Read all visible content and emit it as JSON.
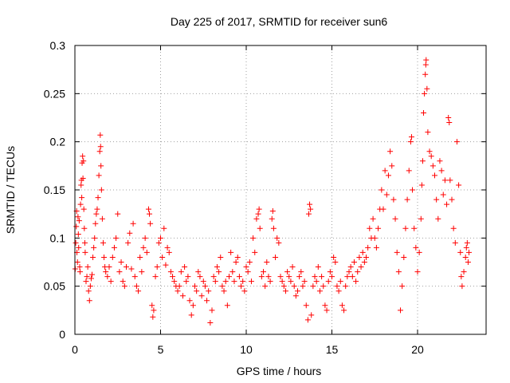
{
  "chart_data": {
    "type": "scatter",
    "title": "Day 225 of 2017, SRMTID for receiver sun6",
    "xlabel": "GPS time / hours",
    "ylabel": "SRMTID / TECUs",
    "xlim": [
      0,
      24
    ],
    "ylim": [
      0,
      0.3
    ],
    "xticks": [
      0,
      5,
      10,
      15,
      20
    ],
    "xtick_labels": [
      "0",
      "5",
      "10",
      "15",
      "20"
    ],
    "yticks": [
      0,
      0.05,
      0.1,
      0.15,
      0.2,
      0.25,
      0.3
    ],
    "ytick_labels": [
      "0",
      "0.05",
      "0.1",
      "0.15",
      "0.2",
      "0.25",
      "0.3"
    ],
    "grid": true,
    "marker": "plus",
    "series_color": "#ff0000",
    "series": [
      {
        "name": "SRMTID",
        "points": [
          [
            0.02,
            0.068
          ],
          [
            0.05,
            0.095
          ],
          [
            0.08,
            0.112
          ],
          [
            0.1,
            0.128
          ],
          [
            0.12,
            0.085
          ],
          [
            0.15,
            0.075
          ],
          [
            0.18,
            0.122
          ],
          [
            0.2,
            0.104
          ],
          [
            0.22,
            0.09
          ],
          [
            0.25,
            0.118
          ],
          [
            0.28,
            0.07
          ],
          [
            0.3,
            0.065
          ],
          [
            0.33,
            0.135
          ],
          [
            0.36,
            0.155
          ],
          [
            0.38,
            0.16
          ],
          [
            0.4,
            0.142
          ],
          [
            0.42,
            0.178
          ],
          [
            0.45,
            0.185
          ],
          [
            0.47,
            0.162
          ],
          [
            0.5,
            0.18
          ],
          [
            0.52,
            0.13
          ],
          [
            0.55,
            0.11
          ],
          [
            0.58,
            0.095
          ],
          [
            0.6,
            0.085
          ],
          [
            0.65,
            0.055
          ],
          [
            0.7,
            0.06
          ],
          [
            0.75,
            0.07
          ],
          [
            0.8,
            0.045
          ],
          [
            0.85,
            0.035
          ],
          [
            0.9,
            0.05
          ],
          [
            0.95,
            0.058
          ],
          [
            1.0,
            0.062
          ],
          [
            1.05,
            0.08
          ],
          [
            1.1,
            0.09
          ],
          [
            1.15,
            0.1
          ],
          [
            1.2,
            0.115
          ],
          [
            1.25,
            0.125
          ],
          [
            1.3,
            0.13
          ],
          [
            1.35,
            0.142
          ],
          [
            1.4,
            0.165
          ],
          [
            1.45,
            0.19
          ],
          [
            1.48,
            0.207
          ],
          [
            1.5,
            0.195
          ],
          [
            1.52,
            0.175
          ],
          [
            1.55,
            0.15
          ],
          [
            1.6,
            0.12
          ],
          [
            1.65,
            0.095
          ],
          [
            1.7,
            0.08
          ],
          [
            1.75,
            0.07
          ],
          [
            1.8,
            0.065
          ],
          [
            1.9,
            0.06
          ],
          [
            2.0,
            0.07
          ],
          [
            2.1,
            0.055
          ],
          [
            2.2,
            0.08
          ],
          [
            2.3,
            0.09
          ],
          [
            2.4,
            0.1
          ],
          [
            2.5,
            0.125
          ],
          [
            2.6,
            0.065
          ],
          [
            2.7,
            0.075
          ],
          [
            2.8,
            0.055
          ],
          [
            2.9,
            0.05
          ],
          [
            3.0,
            0.07
          ],
          [
            3.1,
            0.095
          ],
          [
            3.2,
            0.105
          ],
          [
            3.3,
            0.068
          ],
          [
            3.4,
            0.115
          ],
          [
            3.5,
            0.06
          ],
          [
            3.6,
            0.05
          ],
          [
            3.7,
            0.045
          ],
          [
            3.8,
            0.08
          ],
          [
            3.9,
            0.065
          ],
          [
            4.0,
            0.09
          ],
          [
            4.1,
            0.1
          ],
          [
            4.2,
            0.085
          ],
          [
            4.3,
            0.13
          ],
          [
            4.35,
            0.125
          ],
          [
            4.4,
            0.115
          ],
          [
            4.5,
            0.03
          ],
          [
            4.55,
            0.018
          ],
          [
            4.6,
            0.025
          ],
          [
            4.7,
            0.06
          ],
          [
            4.8,
            0.07
          ],
          [
            4.9,
            0.095
          ],
          [
            5.0,
            0.1
          ],
          [
            5.1,
            0.08
          ],
          [
            5.2,
            0.11
          ],
          [
            5.3,
            0.072
          ],
          [
            5.4,
            0.09
          ],
          [
            5.5,
            0.085
          ],
          [
            5.6,
            0.065
          ],
          [
            5.7,
            0.06
          ],
          [
            5.8,
            0.055
          ],
          [
            5.9,
            0.05
          ],
          [
            6.0,
            0.045
          ],
          [
            6.1,
            0.05
          ],
          [
            6.2,
            0.065
          ],
          [
            6.3,
            0.04
          ],
          [
            6.4,
            0.07
          ],
          [
            6.5,
            0.055
          ],
          [
            6.6,
            0.06
          ],
          [
            6.7,
            0.035
          ],
          [
            6.8,
            0.02
          ],
          [
            6.9,
            0.03
          ],
          [
            7.0,
            0.05
          ],
          [
            7.1,
            0.045
          ],
          [
            7.2,
            0.065
          ],
          [
            7.3,
            0.06
          ],
          [
            7.4,
            0.04
          ],
          [
            7.5,
            0.055
          ],
          [
            7.6,
            0.05
          ],
          [
            7.7,
            0.035
          ],
          [
            7.8,
            0.045
          ],
          [
            7.9,
            0.012
          ],
          [
            8.0,
            0.025
          ],
          [
            8.1,
            0.06
          ],
          [
            8.2,
            0.055
          ],
          [
            8.3,
            0.07
          ],
          [
            8.4,
            0.065
          ],
          [
            8.5,
            0.08
          ],
          [
            8.6,
            0.05
          ],
          [
            8.7,
            0.045
          ],
          [
            8.8,
            0.055
          ],
          [
            8.9,
            0.03
          ],
          [
            9.0,
            0.06
          ],
          [
            9.1,
            0.085
          ],
          [
            9.2,
            0.065
          ],
          [
            9.3,
            0.055
          ],
          [
            9.4,
            0.075
          ],
          [
            9.5,
            0.08
          ],
          [
            9.6,
            0.06
          ],
          [
            9.7,
            0.05
          ],
          [
            9.8,
            0.055
          ],
          [
            9.9,
            0.045
          ],
          [
            10.0,
            0.07
          ],
          [
            10.1,
            0.065
          ],
          [
            10.2,
            0.075
          ],
          [
            10.3,
            0.055
          ],
          [
            10.4,
            0.1
          ],
          [
            10.5,
            0.085
          ],
          [
            10.6,
            0.12
          ],
          [
            10.7,
            0.125
          ],
          [
            10.75,
            0.13
          ],
          [
            10.8,
            0.11
          ],
          [
            10.9,
            0.06
          ],
          [
            11.0,
            0.065
          ],
          [
            11.1,
            0.05
          ],
          [
            11.2,
            0.075
          ],
          [
            11.3,
            0.06
          ],
          [
            11.4,
            0.055
          ],
          [
            11.5,
            0.12
          ],
          [
            11.55,
            0.128
          ],
          [
            11.6,
            0.11
          ],
          [
            11.7,
            0.08
          ],
          [
            11.8,
            0.1
          ],
          [
            11.9,
            0.095
          ],
          [
            12.0,
            0.06
          ],
          [
            12.1,
            0.055
          ],
          [
            12.2,
            0.05
          ],
          [
            12.3,
            0.045
          ],
          [
            12.4,
            0.065
          ],
          [
            12.5,
            0.06
          ],
          [
            12.6,
            0.055
          ],
          [
            12.7,
            0.07
          ],
          [
            12.8,
            0.05
          ],
          [
            12.9,
            0.04
          ],
          [
            13.0,
            0.045
          ],
          [
            13.1,
            0.06
          ],
          [
            13.2,
            0.065
          ],
          [
            13.3,
            0.05
          ],
          [
            13.4,
            0.055
          ],
          [
            13.5,
            0.03
          ],
          [
            13.6,
            0.015
          ],
          [
            13.65,
            0.125
          ],
          [
            13.7,
            0.135
          ],
          [
            13.75,
            0.13
          ],
          [
            13.8,
            0.02
          ],
          [
            13.9,
            0.05
          ],
          [
            14.0,
            0.06
          ],
          [
            14.1,
            0.055
          ],
          [
            14.2,
            0.07
          ],
          [
            14.3,
            0.045
          ],
          [
            14.4,
            0.06
          ],
          [
            14.5,
            0.05
          ],
          [
            14.6,
            0.03
          ],
          [
            14.7,
            0.025
          ],
          [
            14.8,
            0.055
          ],
          [
            14.9,
            0.065
          ],
          [
            15.0,
            0.06
          ],
          [
            15.1,
            0.08
          ],
          [
            15.2,
            0.075
          ],
          [
            15.3,
            0.05
          ],
          [
            15.4,
            0.045
          ],
          [
            15.5,
            0.055
          ],
          [
            15.6,
            0.03
          ],
          [
            15.7,
            0.025
          ],
          [
            15.8,
            0.05
          ],
          [
            15.9,
            0.06
          ],
          [
            16.0,
            0.065
          ],
          [
            16.1,
            0.07
          ],
          [
            16.2,
            0.06
          ],
          [
            16.3,
            0.075
          ],
          [
            16.4,
            0.055
          ],
          [
            16.5,
            0.065
          ],
          [
            16.6,
            0.08
          ],
          [
            16.7,
            0.07
          ],
          [
            16.8,
            0.085
          ],
          [
            16.9,
            0.075
          ],
          [
            17.0,
            0.08
          ],
          [
            17.1,
            0.09
          ],
          [
            17.2,
            0.11
          ],
          [
            17.3,
            0.1
          ],
          [
            17.4,
            0.12
          ],
          [
            17.5,
            0.1
          ],
          [
            17.6,
            0.09
          ],
          [
            17.7,
            0.11
          ],
          [
            17.8,
            0.13
          ],
          [
            17.9,
            0.15
          ],
          [
            18.0,
            0.13
          ],
          [
            18.1,
            0.17
          ],
          [
            18.2,
            0.145
          ],
          [
            18.3,
            0.165
          ],
          [
            18.4,
            0.19
          ],
          [
            18.5,
            0.175
          ],
          [
            18.6,
            0.14
          ],
          [
            18.7,
            0.12
          ],
          [
            18.8,
            0.085
          ],
          [
            18.9,
            0.065
          ],
          [
            19.0,
            0.025
          ],
          [
            19.1,
            0.05
          ],
          [
            19.2,
            0.08
          ],
          [
            19.3,
            0.11
          ],
          [
            19.4,
            0.14
          ],
          [
            19.5,
            0.17
          ],
          [
            19.6,
            0.2
          ],
          [
            19.65,
            0.205
          ],
          [
            19.7,
            0.15
          ],
          [
            19.8,
            0.11
          ],
          [
            19.9,
            0.09
          ],
          [
            20.0,
            0.065
          ],
          [
            20.1,
            0.085
          ],
          [
            20.2,
            0.12
          ],
          [
            20.25,
            0.155
          ],
          [
            20.3,
            0.18
          ],
          [
            20.35,
            0.23
          ],
          [
            20.4,
            0.25
          ],
          [
            20.45,
            0.27
          ],
          [
            20.48,
            0.28
          ],
          [
            20.5,
            0.285
          ],
          [
            20.55,
            0.255
          ],
          [
            20.6,
            0.21
          ],
          [
            20.7,
            0.19
          ],
          [
            20.8,
            0.185
          ],
          [
            20.9,
            0.175
          ],
          [
            21.0,
            0.165
          ],
          [
            21.1,
            0.14
          ],
          [
            21.2,
            0.12
          ],
          [
            21.3,
            0.18
          ],
          [
            21.4,
            0.17
          ],
          [
            21.5,
            0.145
          ],
          [
            21.6,
            0.16
          ],
          [
            21.7,
            0.135
          ],
          [
            21.8,
            0.225
          ],
          [
            21.85,
            0.22
          ],
          [
            21.9,
            0.16
          ],
          [
            22.0,
            0.14
          ],
          [
            22.1,
            0.11
          ],
          [
            22.2,
            0.095
          ],
          [
            22.3,
            0.2
          ],
          [
            22.4,
            0.155
          ],
          [
            22.5,
            0.085
          ],
          [
            22.55,
            0.06
          ],
          [
            22.6,
            0.05
          ],
          [
            22.7,
            0.065
          ],
          [
            22.8,
            0.08
          ],
          [
            22.85,
            0.09
          ],
          [
            22.9,
            0.095
          ],
          [
            22.95,
            0.075
          ],
          [
            23.0,
            0.085
          ]
        ]
      }
    ]
  }
}
